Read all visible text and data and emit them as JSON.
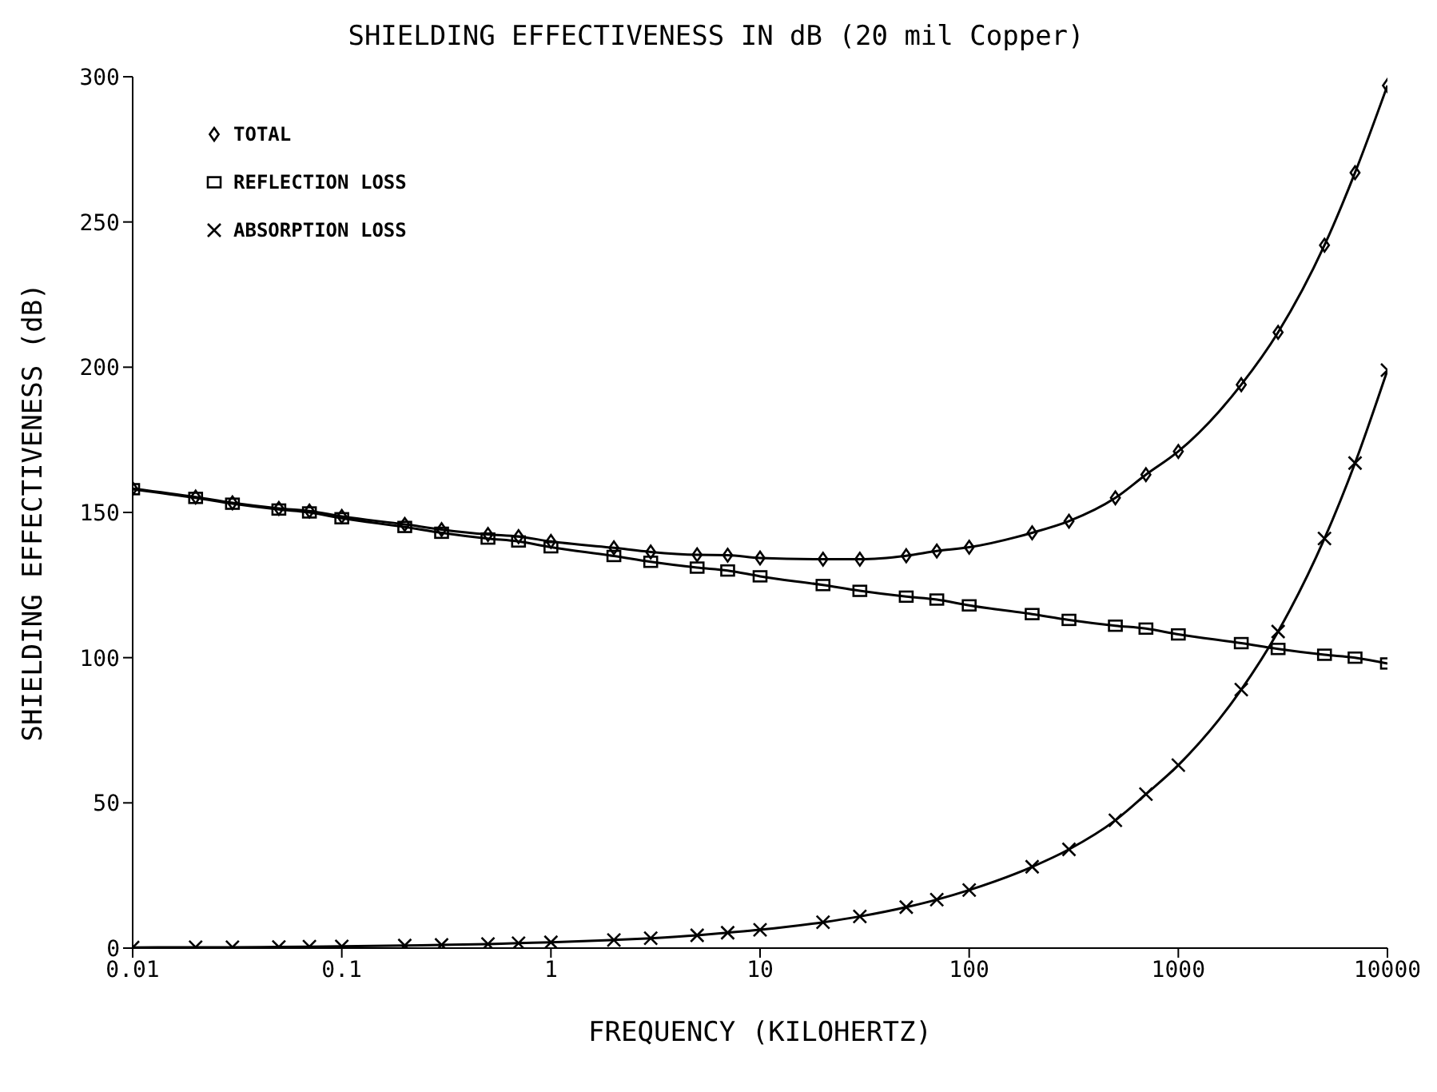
{
  "chart_data": {
    "type": "line",
    "title": "SHIELDING EFFECTIVENESS IN dB (20 mil Copper)",
    "xlabel": "FREQUENCY (KILOHERTZ)",
    "ylabel": "SHIELDING EFFECTIVENESS (dB)",
    "log": "x",
    "xlim": [
      0.01,
      10000
    ],
    "xticks": [
      {
        "value": 0.01,
        "label": "0.01"
      },
      {
        "value": 0.1,
        "label": "0.1"
      },
      1,
      10,
      100,
      1000,
      10000
    ],
    "ylim": [
      0,
      300
    ],
    "yticks": [
      0,
      50,
      100,
      150,
      200,
      250,
      300
    ],
    "grid": false,
    "legend": "top left",
    "line_style": "solid",
    "x": [
      0.01,
      0.02,
      0.03,
      0.05,
      0.07,
      0.1,
      0.2,
      0.3,
      0.5,
      0.7,
      1,
      2,
      3,
      5,
      7,
      10,
      20,
      30,
      50,
      70,
      100,
      200,
      300,
      500,
      700,
      1000,
      2000,
      3000,
      5000,
      7000,
      10000
    ],
    "series": [
      {
        "name": "TOTAL",
        "color": "#000000",
        "marker": "diamond",
        "values": [
          158.2,
          155.3,
          153.3,
          151.4,
          150.5,
          148.6,
          145.9,
          144.1,
          142.4,
          141.7,
          140,
          137.8,
          136.4,
          135.4,
          135.3,
          134.3,
          133.9,
          133.9,
          135.1,
          136.7,
          138,
          143,
          147,
          155,
          163,
          171,
          194,
          212,
          242,
          267,
          297
        ]
      },
      {
        "name": "REFLECTION LOSS",
        "color": "#000000",
        "marker": "square",
        "values": [
          158,
          155,
          153,
          151,
          150,
          148,
          145,
          143,
          141,
          140,
          138,
          135,
          133,
          131,
          130,
          128,
          125,
          123,
          121,
          120,
          118,
          115,
          113,
          111,
          110,
          108,
          105,
          103,
          101,
          100,
          98
        ]
      },
      {
        "name": "ABSORPTION LOSS",
        "color": "#000000",
        "marker": "cross",
        "values": [
          0.2,
          0.3,
          0.3,
          0.4,
          0.5,
          0.6,
          0.9,
          1.1,
          1.4,
          1.7,
          2,
          2.8,
          3.4,
          4.4,
          5.3,
          6.3,
          8.9,
          10.9,
          14.1,
          16.7,
          20,
          28,
          34,
          44,
          53,
          63,
          89,
          109,
          141,
          167,
          199
        ]
      }
    ]
  }
}
